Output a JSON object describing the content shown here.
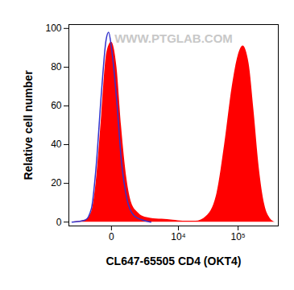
{
  "chart_data": {
    "type": "histogram",
    "xlabel": "CL647-65505 CD4 (OKT4)",
    "ylabel": "Relative cell number",
    "annotations": [
      "WWW.PTGLAB.COM"
    ],
    "log": "x",
    "x": [
      -3000,
      -1500,
      -1000,
      -700,
      -400,
      -200,
      -100,
      0,
      200,
      400,
      700,
      1000,
      1500,
      2000,
      3000,
      5000,
      8000,
      12000,
      20000,
      30000,
      45000,
      60000,
      80000,
      100000,
      120000,
      150000,
      180000,
      220000,
      270000,
      330000,
      400000
    ],
    "series": [
      {
        "type": "area",
        "color": "#ff0000",
        "values": [
          0,
          1,
          5,
          20,
          55,
          85,
          91,
          93,
          80,
          50,
          22,
          10,
          5,
          3,
          2,
          1.5,
          1,
          0.5,
          0.5,
          3,
          15,
          40,
          70,
          86,
          91,
          82,
          58,
          28,
          9,
          2,
          0
        ]
      },
      {
        "type": "line",
        "color": "#3333cc",
        "values": [
          0,
          1,
          7,
          28,
          68,
          94,
          98,
          90,
          62,
          32,
          12,
          5,
          2,
          1,
          0,
          null,
          null,
          null,
          null,
          null,
          null,
          null,
          null,
          null,
          null,
          null,
          null,
          null,
          null,
          null,
          null
        ]
      }
    ],
    "xlim": [
      -3500,
      450000
    ],
    "xticks": [
      0,
      {
        "value": 10000,
        "label": "10⁴"
      },
      {
        "value": 100000,
        "label": "10⁵"
      }
    ],
    "ylim": [
      -2,
      102
    ],
    "yticks": [
      0,
      20,
      40,
      60,
      80,
      100
    ],
    "grid": false
  }
}
